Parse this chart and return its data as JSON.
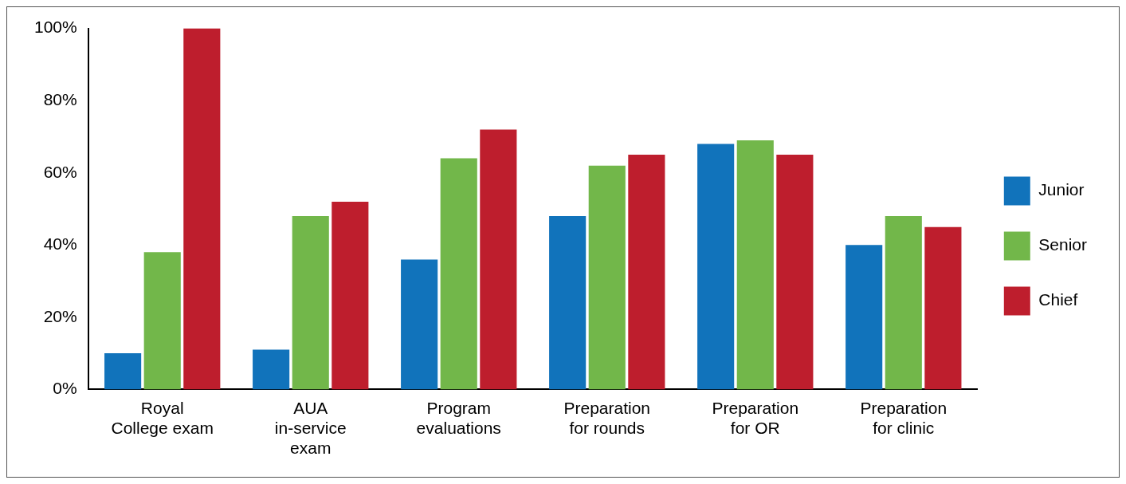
{
  "chart_data": {
    "type": "bar",
    "categories": [
      "Royal College exam",
      "AUA in-service exam",
      "Program evaluations",
      "Preparation for rounds",
      "Preparation for OR",
      "Preparation for clinic"
    ],
    "series": [
      {
        "name": "Junior",
        "color": "#1173bb",
        "values": [
          10,
          11,
          36,
          48,
          68,
          40
        ]
      },
      {
        "name": "Senior",
        "color": "#72b74a",
        "values": [
          38,
          48,
          64,
          62,
          69,
          48
        ]
      },
      {
        "name": "Chief",
        "color": "#be1e2d",
        "values": [
          100,
          52,
          72,
          65,
          65,
          45
        ]
      }
    ],
    "ylim": [
      0,
      100
    ],
    "yticks": [
      {
        "value": 0,
        "label": "0%"
      },
      {
        "value": 20,
        "label": "20%"
      },
      {
        "value": 40,
        "label": "40%"
      },
      {
        "value": 60,
        "label": "60%"
      },
      {
        "value": 80,
        "label": "80%"
      },
      {
        "value": 100,
        "label": "100%"
      }
    ],
    "grid": false,
    "legend": "right"
  }
}
